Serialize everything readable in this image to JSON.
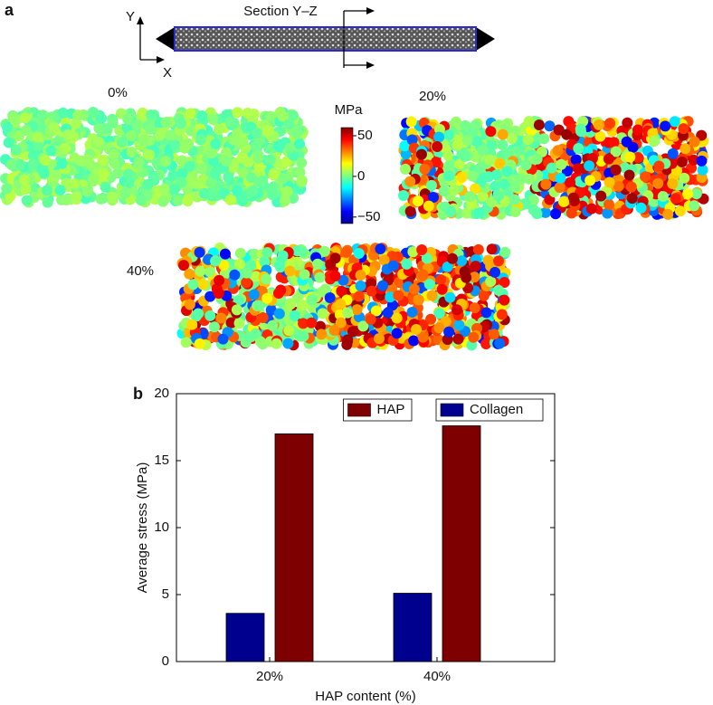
{
  "panel_a": {
    "label": "a",
    "section_title": "Section Y–Z",
    "axis_y": "Y",
    "axis_x": "X",
    "panels": [
      "0%",
      "20%",
      "40%"
    ],
    "colorbar": {
      "label": "MPa",
      "lim": [
        -58,
        60
      ],
      "ticks": [
        50,
        0,
        {
          "value": -50,
          "label": "−50"
        }
      ]
    }
  },
  "chart_data": {
    "type": "bar",
    "panel_label": "b",
    "xlabel": "HAP content (%)",
    "ylabel": "Average stress (MPa)",
    "categories": [
      "20%",
      "40%"
    ],
    "series": [
      {
        "name": "Collagen",
        "color": "#00008f",
        "values": [
          3.6,
          5.1
        ]
      },
      {
        "name": "HAP",
        "color": "#7f0000",
        "values": [
          17.0,
          17.6
        ]
      }
    ],
    "ylim": [
      0,
      20
    ],
    "yticks": [
      0,
      5,
      10,
      15,
      20
    ],
    "legend": "upper right",
    "grid": false
  }
}
